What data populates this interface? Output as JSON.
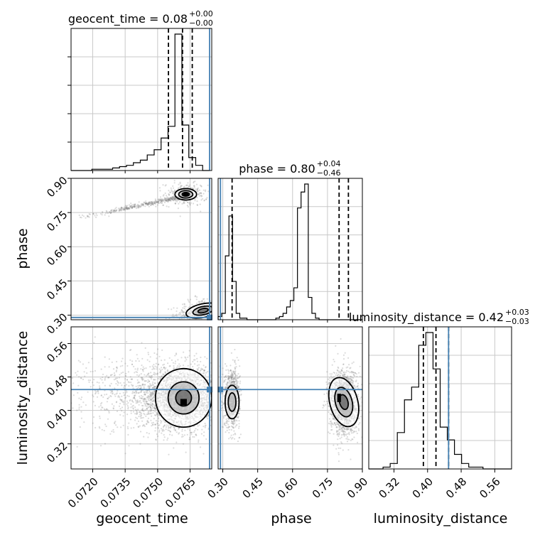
{
  "chart_data": {
    "type": "corner",
    "colors": {
      "truth": "#4682b4",
      "hist": "#000000",
      "grid": "#c8c8c8",
      "scatter": "#808080"
    },
    "parameters": [
      {
        "name": "geocent_time",
        "label": "geocent_time",
        "range": [
          0.071,
          0.0775
        ],
        "ticks": [
          "0.0720",
          "0.0735",
          "0.0750",
          "0.0765"
        ],
        "tick_values": [
          0.072,
          0.0735,
          0.075,
          0.0765
        ],
        "truth": 0.0774
      },
      {
        "name": "phase",
        "label": "phase",
        "range": [
          0.28,
          0.9
        ],
        "ticks": [
          "0.30",
          "0.45",
          "0.60",
          "0.75",
          "0.90"
        ],
        "tick_values": [
          0.3,
          0.45,
          0.6,
          0.75,
          0.9
        ],
        "truth": 0.29
      },
      {
        "name": "luminosity_distance",
        "label": "luminosity_distance",
        "range": [
          0.26,
          0.6
        ],
        "ticks": [
          "0.32",
          "0.40",
          "0.48",
          "0.56"
        ],
        "tick_values": [
          0.32,
          0.4,
          0.48,
          0.56
        ],
        "truth": 0.45
      }
    ],
    "titles": [
      {
        "text": "geocent_time = 0.08",
        "sup": "+0.00",
        "sub": "−0.00"
      },
      {
        "text": "phase = 0.80",
        "sup": "+0.04",
        "sub": "−0.46"
      },
      {
        "text": "luminosity_distance = 0.42",
        "sup": "+0.03",
        "sub": "−0.03"
      }
    ],
    "quantiles": [
      [
        0.0755,
        0.07615,
        0.0766
      ],
      [
        0.34,
        0.8,
        0.84
      ],
      [
        0.39,
        0.42,
        0.45
      ]
    ],
    "histograms": [
      {
        "edges_start": 0.071,
        "bin_width": 0.00032,
        "counts": [
          0,
          0,
          0,
          1,
          1,
          1,
          2,
          3,
          4,
          6,
          8,
          12,
          16,
          25,
          34,
          105,
          35,
          10,
          4,
          0
        ]
      },
      {
        "edges_start": 0.28,
        "bin_width": 0.0155,
        "counts": [
          2,
          4,
          40,
          65,
          24,
          4,
          1,
          1,
          0,
          0,
          0,
          0,
          0,
          0,
          0,
          0,
          1,
          2,
          4,
          8,
          12,
          20,
          70,
          80,
          85,
          14,
          4,
          1,
          0,
          0,
          0,
          0,
          0,
          0,
          0,
          0,
          0,
          0,
          0,
          0
        ]
      },
      {
        "edges_start": 0.26,
        "bin_width": 0.017,
        "counts": [
          0,
          0,
          1,
          3,
          20,
          38,
          45,
          68,
          75,
          55,
          23,
          16,
          8,
          3,
          1,
          1,
          0,
          0,
          0,
          0
        ]
      }
    ],
    "contours": {
      "geocent_time-phase": [
        {
          "cx": 0.0763,
          "cy": 0.83,
          "rx": 0.0005,
          "ry": 0.025,
          "rot": 0,
          "levels": [
            1.0,
            0.65,
            0.33
          ]
        },
        {
          "cx": 0.0771,
          "cy": 0.32,
          "rx": 0.0008,
          "ry": 0.03,
          "rot": -12,
          "levels": [
            1.0,
            0.6,
            0.3
          ]
        }
      ],
      "geocent_time-luminosity_distance": [
        {
          "cx": 0.0762,
          "cy": 0.43,
          "rx": 0.0013,
          "ry": 0.07,
          "rot": 0,
          "levels": [
            1.0,
            0.55,
            0.28
          ]
        }
      ],
      "phase-luminosity_distance": [
        {
          "cx": 0.34,
          "cy": 0.42,
          "rx": 0.03,
          "ry": 0.04,
          "rot": 0,
          "levels": [
            1.0,
            0.55
          ]
        },
        {
          "cx": 0.82,
          "cy": 0.42,
          "rx": 0.06,
          "ry": 0.06,
          "rot": -15,
          "levels": [
            1.0,
            0.6,
            0.3
          ]
        }
      ]
    },
    "density_peaks": {
      "geocent_time-phase": [
        {
          "x": 0.0763,
          "y": 0.83,
          "w": 0.00025,
          "h": 0.012
        }
      ],
      "geocent_time-luminosity_distance": [
        {
          "x": 0.0762,
          "y": 0.42,
          "w": 0.0003,
          "h": 0.015
        }
      ],
      "phase-luminosity_distance": [
        {
          "x": 0.8,
          "y": 0.43,
          "w": 0.016,
          "h": 0.02
        }
      ]
    },
    "grid": true
  }
}
